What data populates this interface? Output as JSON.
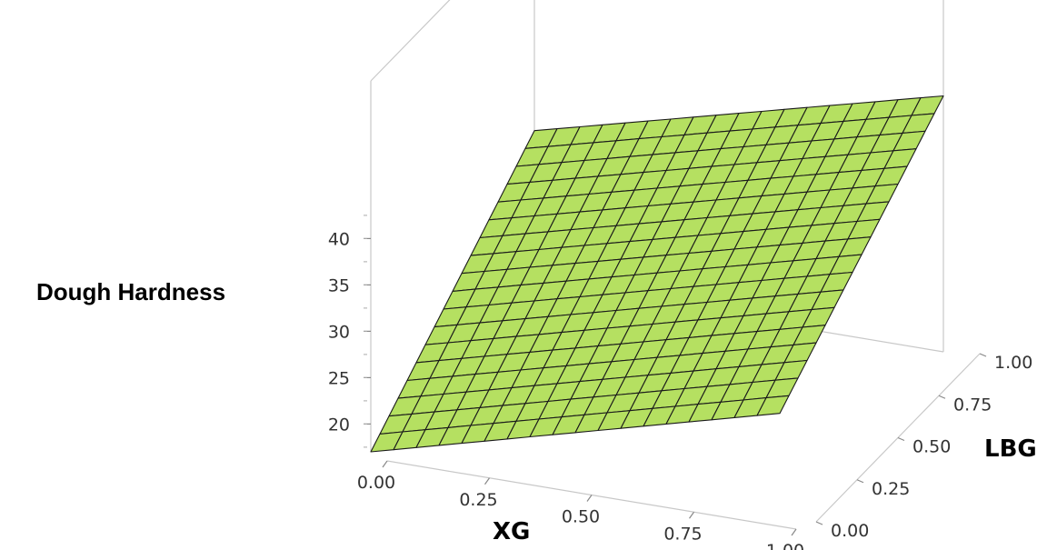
{
  "chart_data": {
    "type": "surface",
    "title": "",
    "zlabel": "Dough Hardness",
    "xlabel": "XG",
    "ylabel": "LBG",
    "x_ticks": [
      "0.00",
      "0.25",
      "0.50",
      "0.75",
      "1.00"
    ],
    "y_ticks": [
      "0.00",
      "0.25",
      "0.50",
      "0.75",
      "1.00"
    ],
    "z_ticks": [
      "20",
      "25",
      "30",
      "35",
      "40"
    ],
    "xlim": [
      0,
      1
    ],
    "ylim": [
      0,
      1
    ],
    "zlim": [
      17,
      45
    ],
    "grid": "off",
    "surface_color": "#b5e061",
    "mesh_color": "#1a1a1a",
    "corners": [
      {
        "x": 0,
        "y": 0,
        "z": 17
      },
      {
        "x": 1,
        "y": 0,
        "z": 28.5
      },
      {
        "x": 0,
        "y": 1,
        "z": 33.5
      },
      {
        "x": 1,
        "y": 1,
        "z": 44.6
      }
    ]
  }
}
